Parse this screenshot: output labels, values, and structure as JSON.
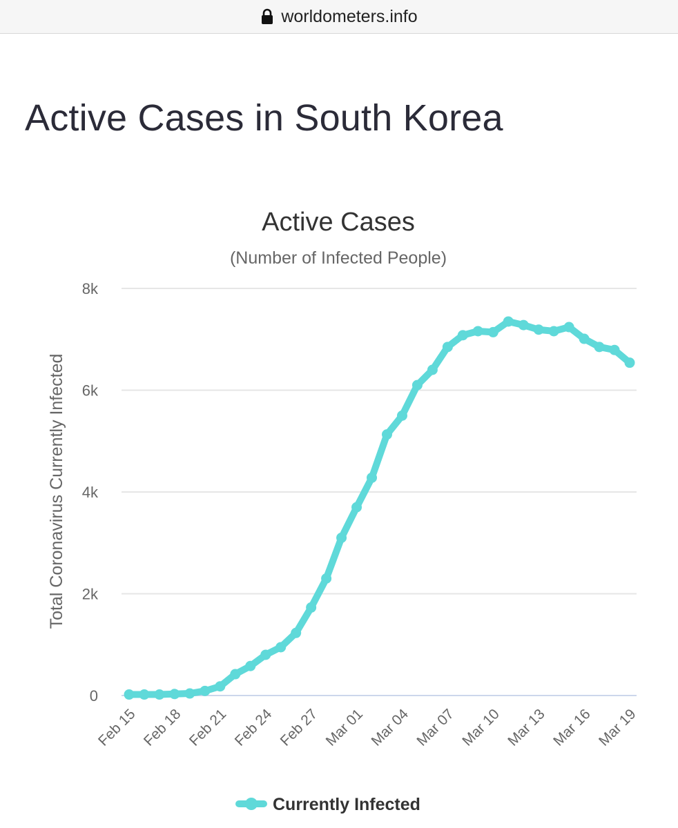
{
  "browser": {
    "url": "worldometers.info",
    "lock_icon": "lock-icon"
  },
  "page": {
    "title": "Active Cases in South Korea"
  },
  "colors": {
    "series": "#5fd9d9",
    "grid": "#e6e6e6",
    "text": "#333333"
  },
  "chart_data": {
    "type": "line",
    "title": "Active Cases",
    "subtitle": "(Number of Infected People)",
    "xlabel": "",
    "ylabel": "Total Coronavirus Currently Infected",
    "ylim": [
      0,
      8000
    ],
    "yticks": [
      {
        "value": 0,
        "label": "0"
      },
      {
        "value": 2000,
        "label": "2k"
      },
      {
        "value": 4000,
        "label": "4k"
      },
      {
        "value": 6000,
        "label": "6k"
      },
      {
        "value": 8000,
        "label": "8k"
      }
    ],
    "xtick_labels": [
      "Feb 15",
      "Feb 18",
      "Feb 21",
      "Feb 24",
      "Feb 27",
      "Mar 01",
      "Mar 04",
      "Mar 07",
      "Mar 10",
      "Mar 13",
      "Mar 16",
      "Mar 19"
    ],
    "categories": [
      "Feb 15",
      "Feb 16",
      "Feb 17",
      "Feb 18",
      "Feb 19",
      "Feb 20",
      "Feb 21",
      "Feb 22",
      "Feb 23",
      "Feb 24",
      "Feb 25",
      "Feb 26",
      "Feb 27",
      "Feb 28",
      "Feb 29",
      "Mar 01",
      "Mar 02",
      "Mar 03",
      "Mar 04",
      "Mar 05",
      "Mar 06",
      "Mar 07",
      "Mar 08",
      "Mar 09",
      "Mar 10",
      "Mar 11",
      "Mar 12",
      "Mar 13",
      "Mar 14",
      "Mar 15",
      "Mar 16",
      "Mar 17",
      "Mar 18",
      "Mar 19"
    ],
    "series": [
      {
        "name": "Currently Infected",
        "values": [
          20,
          20,
          20,
          30,
          40,
          90,
          180,
          420,
          580,
          800,
          950,
          1230,
          1730,
          2300,
          3100,
          3700,
          4280,
          5130,
          5500,
          6100,
          6400,
          6850,
          7080,
          7160,
          7140,
          7350,
          7280,
          7190,
          7160,
          7240,
          7010,
          6850,
          6790,
          6540
        ]
      }
    ],
    "legend": {
      "position": "bottom-center",
      "entries": [
        "Currently Infected"
      ]
    }
  }
}
